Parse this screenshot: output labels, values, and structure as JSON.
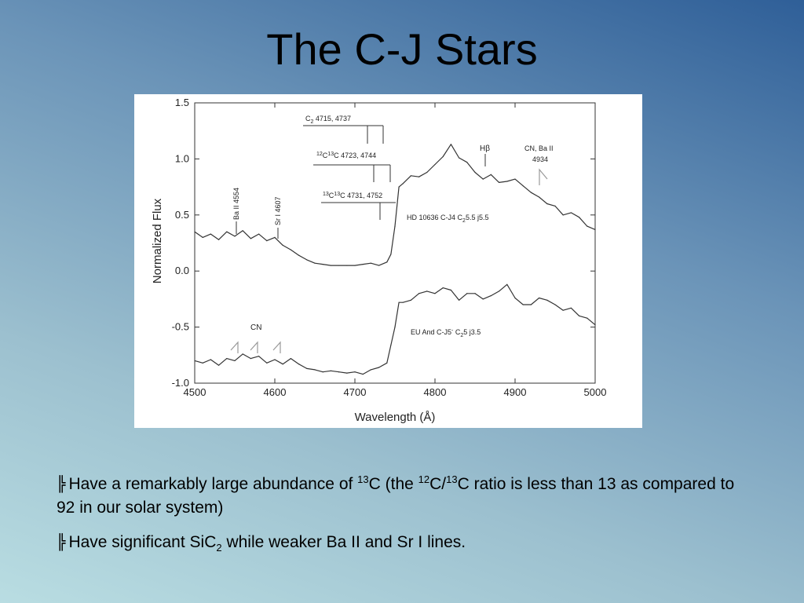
{
  "slide": {
    "title": "The C-J Stars",
    "bullet_icon": "double-bar-bullet-icon",
    "bullets": [
      {
        "mark": "╠",
        "t1": "Have a remarkably large abundance of ",
        "sup1": "13",
        "t2": "C (the ",
        "sup2": "12",
        "t3": "C/",
        "sup3": "13",
        "t4": "C ratio is less than 13 as compared to 92 in our solar system)"
      },
      {
        "mark": "╠",
        "t1": "Have significant SiC",
        "sub1": "2",
        "t2": " while weaker Ba II and Sr I lines."
      }
    ]
  },
  "chart_data": {
    "type": "line",
    "title": "",
    "xlabel": "Wavelength (Å)",
    "ylabel": "Normalized Flux",
    "xlim": [
      4500,
      5000
    ],
    "ylim": [
      -1.0,
      1.5
    ],
    "xticks": [
      4500,
      4600,
      4700,
      4800,
      4900,
      5000
    ],
    "yticks": [
      -1.0,
      -0.5,
      0.0,
      0.5,
      1.0,
      1.5
    ],
    "ytick_labels": [
      "-1.0",
      "-0.5",
      "0.0",
      "0.5",
      "1.0",
      "1.5"
    ],
    "grid": false,
    "line_color": "#333333",
    "series": [
      {
        "name": "HD 10636  C-J4 C₂5.5 j5.5",
        "x": [
          4500,
          4510,
          4520,
          4530,
          4540,
          4550,
          4560,
          4570,
          4580,
          4590,
          4600,
          4610,
          4620,
          4630,
          4640,
          4650,
          4660,
          4670,
          4680,
          4690,
          4700,
          4710,
          4720,
          4730,
          4740,
          4745,
          4750,
          4755,
          4760,
          4770,
          4780,
          4790,
          4800,
          4810,
          4820,
          4830,
          4840,
          4850,
          4860,
          4870,
          4880,
          4890,
          4900,
          4910,
          4920,
          4930,
          4940,
          4950,
          4960,
          4970,
          4980,
          4990,
          5000
        ],
        "values": [
          0.35,
          0.3,
          0.33,
          0.28,
          0.35,
          0.31,
          0.36,
          0.29,
          0.33,
          0.27,
          0.3,
          0.23,
          0.19,
          0.14,
          0.1,
          0.07,
          0.06,
          0.05,
          0.05,
          0.05,
          0.05,
          0.06,
          0.07,
          0.05,
          0.08,
          0.15,
          0.4,
          0.75,
          0.78,
          0.85,
          0.84,
          0.88,
          0.95,
          1.02,
          1.13,
          1.01,
          0.97,
          0.88,
          0.82,
          0.86,
          0.79,
          0.8,
          0.82,
          0.76,
          0.7,
          0.66,
          0.6,
          0.58,
          0.5,
          0.52,
          0.48,
          0.4,
          0.37
        ]
      },
      {
        "name": "EU And  C-J5⁻ C₂5 j3.5",
        "x": [
          4500,
          4510,
          4520,
          4530,
          4540,
          4550,
          4560,
          4570,
          4580,
          4590,
          4600,
          4610,
          4620,
          4630,
          4640,
          4650,
          4660,
          4670,
          4680,
          4690,
          4700,
          4710,
          4720,
          4730,
          4740,
          4745,
          4750,
          4755,
          4760,
          4770,
          4780,
          4790,
          4800,
          4810,
          4820,
          4830,
          4840,
          4850,
          4860,
          4870,
          4880,
          4890,
          4900,
          4910,
          4920,
          4930,
          4940,
          4950,
          4960,
          4970,
          4980,
          4990,
          5000
        ],
        "values": [
          -0.8,
          -0.82,
          -0.79,
          -0.84,
          -0.78,
          -0.8,
          -0.74,
          -0.78,
          -0.76,
          -0.82,
          -0.79,
          -0.83,
          -0.78,
          -0.83,
          -0.87,
          -0.88,
          -0.9,
          -0.89,
          -0.9,
          -0.91,
          -0.9,
          -0.92,
          -0.88,
          -0.86,
          -0.82,
          -0.66,
          -0.5,
          -0.28,
          -0.28,
          -0.26,
          -0.2,
          -0.18,
          -0.2,
          -0.15,
          -0.17,
          -0.26,
          -0.2,
          -0.2,
          -0.25,
          -0.22,
          -0.18,
          -0.12,
          -0.24,
          -0.3,
          -0.3,
          -0.24,
          -0.26,
          -0.3,
          -0.35,
          -0.33,
          -0.4,
          -0.42,
          -0.48
        ]
      }
    ],
    "annotations": {
      "ba": "Ba II 4554",
      "sr": "Sr I 4607",
      "c2": "C",
      "c2_sub": "2",
      "c2_rest": " 4715, 4737",
      "c1213_sup1": "12",
      "c1213_mid": "C",
      "c1213_sup2": "13",
      "c1213_rest": "C 4723, 4744",
      "c1313_sup1": "13",
      "c1313_mid": "C",
      "c1313_sup2": "13",
      "c1313_rest": "C 4731, 4752",
      "hb": "Hβ",
      "cnba_1": "CN, Ba II",
      "cnba_2": "4934",
      "cn": "CN",
      "star1_a": "HD 10636  C-J4 C",
      "star1_sub": "2",
      "star1_b": "5.5 j5.5",
      "star2_a": "EU And  C-J5",
      "star2_sup": "-",
      "star2_b": " C",
      "star2_sub": "2",
      "star2_c": "5 j3.5"
    }
  }
}
